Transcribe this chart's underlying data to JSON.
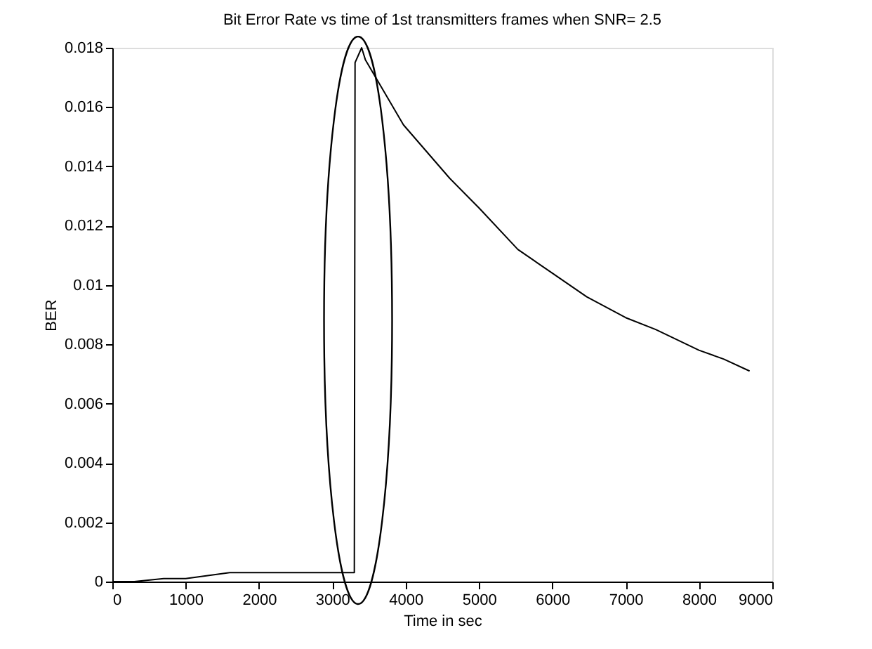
{
  "chart_data": {
    "type": "line",
    "title": "Bit Error Rate vs time of 1st transmitters frames when SNR= 2.5",
    "xlabel": "Time in sec",
    "ylabel": "BER",
    "x": [
      0,
      300,
      700,
      1000,
      1300,
      1600,
      2000,
      2500,
      3000,
      3300,
      3310,
      3400,
      3450,
      3970,
      4600,
      5000,
      5530,
      6000,
      6470,
      7000,
      7410,
      8000,
      8340,
      8690
    ],
    "values": [
      0,
      0,
      0.0001,
      0.0001,
      0.0002,
      0.0003,
      0.0003,
      0.0003,
      0.0003,
      0.0003,
      0.0175,
      0.018,
      0.0176,
      0.0154,
      0.0136,
      0.0126,
      0.0112,
      0.0104,
      0.0096,
      0.0089,
      0.0085,
      0.0078,
      0.0075,
      0.0071
    ],
    "color": "#000000",
    "xlim": [
      0,
      9000
    ],
    "xticks": [
      0,
      1000,
      2000,
      3000,
      4000,
      5000,
      6000,
      7000,
      8000,
      9000
    ],
    "ylim": [
      0,
      0.018
    ],
    "yticks": [
      0,
      0.002,
      0.004,
      0.006,
      0.008,
      0.01,
      0.012,
      0.014,
      0.016,
      0.018
    ],
    "grid": false
  }
}
